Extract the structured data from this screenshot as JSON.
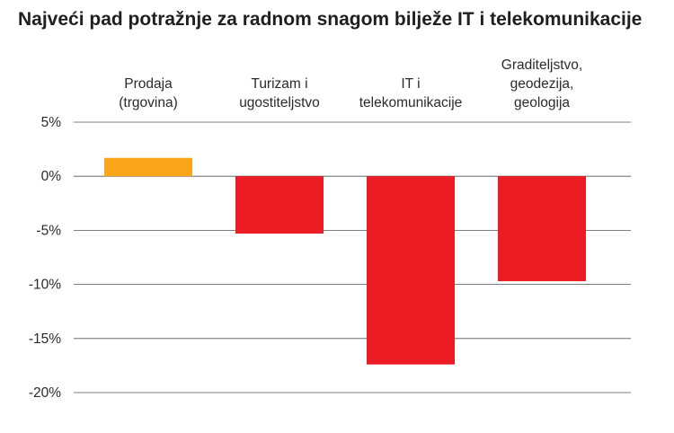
{
  "chart_data": {
    "type": "bar",
    "title": "Najveći pad potražnje za radnom snagom bilježe IT i telekomunikacije",
    "categories": [
      [
        "Prodaja",
        "(trgovina)"
      ],
      [
        "Turizam i",
        "ugostiteljstvo"
      ],
      [
        "IT i",
        "telekomunikacije"
      ],
      [
        "Graditeljstvo,",
        "geodezija,",
        "geologija"
      ]
    ],
    "values": [
      1.7,
      -5.3,
      -17.4,
      -9.7
    ],
    "bar_colors": [
      "#f9a61a",
      "#ec1c24",
      "#ec1c24",
      "#ec1c24"
    ],
    "yticks": [
      5,
      0,
      -5,
      -10,
      -15,
      -20
    ],
    "ytick_labels": [
      "5%",
      "0%",
      "-5%",
      "-10%",
      "-15%",
      "-20%"
    ],
    "ylim": [
      -20,
      5
    ],
    "grid": true,
    "legend": "none"
  }
}
